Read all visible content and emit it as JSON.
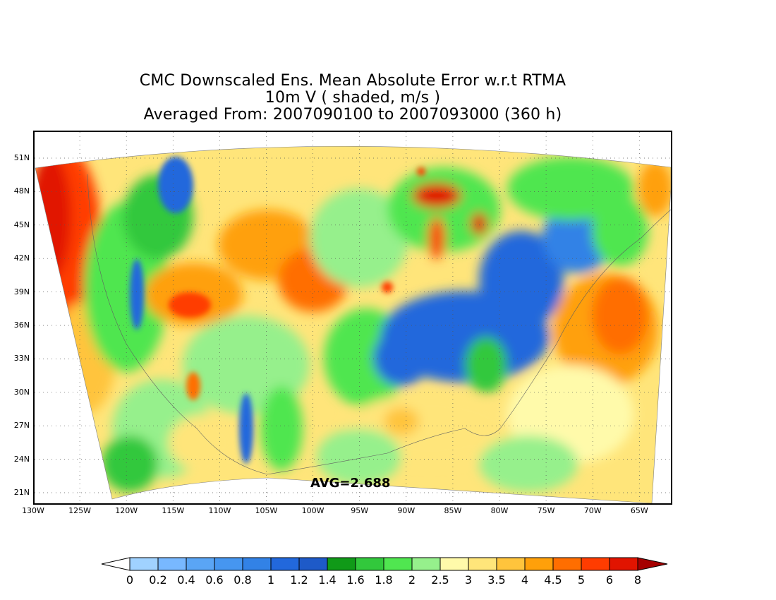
{
  "title": {
    "line1": "CMC Downscaled Ens. Mean Absolute Error w.r.t RTMA",
    "line2": "10m V ( shaded, m/s )",
    "line3": "Averaged From: 2007090100 to 2007093000 (360 h)"
  },
  "map": {
    "projection": "lambert-conformal",
    "region": "CONUS",
    "lat_labels": [
      "51N",
      "48N",
      "45N",
      "42N",
      "39N",
      "36N",
      "33N",
      "30N",
      "27N",
      "24N",
      "21N"
    ],
    "lon_labels": [
      "130W",
      "125W",
      "120W",
      "115W",
      "110W",
      "105W",
      "100W",
      "95W",
      "90W",
      "85W",
      "80W",
      "75W",
      "70W",
      "65W"
    ],
    "avg_label": "AVG=2.688",
    "grid": "dotted",
    "coastlines": true
  },
  "colorbar": {
    "levels": [
      "0",
      "0.2",
      "0.4",
      "0.6",
      "0.8",
      "1",
      "1.2",
      "1.4",
      "1.6",
      "1.8",
      "2",
      "2.5",
      "3",
      "3.5",
      "4",
      "4.5",
      "5",
      "6",
      "8"
    ],
    "colors": [
      "#a0d2ff",
      "#78b8ff",
      "#5aa5f5",
      "#4696f0",
      "#3282e6",
      "#2268dc",
      "#1e5ac8",
      "#109a18",
      "#32c83c",
      "#50e650",
      "#96f08c",
      "#fffaaa",
      "#ffe57a",
      "#ffc43c",
      "#ffa00a",
      "#ff6e00",
      "#ff3c00",
      "#e11400",
      "#a50000"
    ],
    "under_color": "#ffffff"
  }
}
